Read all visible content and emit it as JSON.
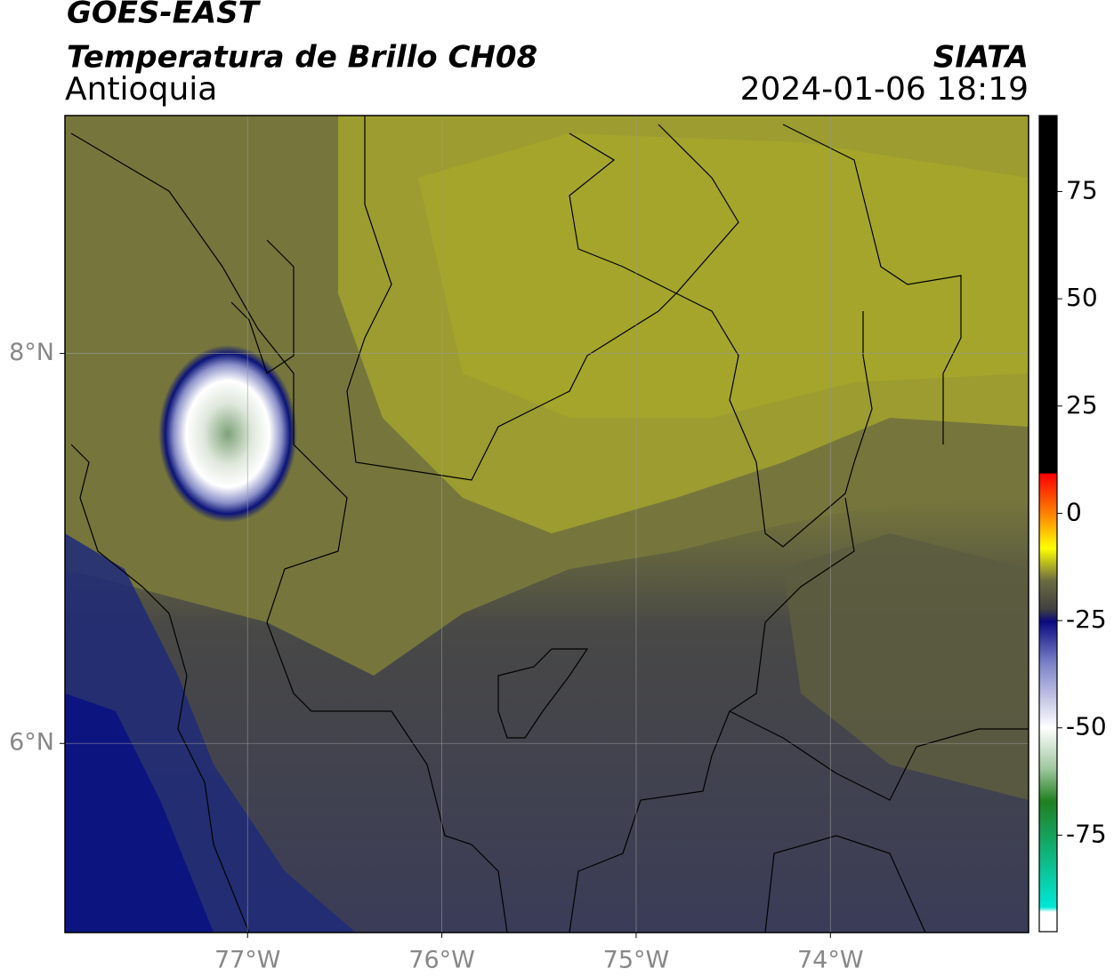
{
  "header": {
    "title": "GOES-EAST",
    "subtitle": "Temperatura de Brillo CH08",
    "region": "Antioquia",
    "source": "SIATA",
    "datetime": "2024-01-06 18:19"
  },
  "map": {
    "xlim": [
      -77.94,
      -72.98
    ],
    "ylim": [
      5.03,
      9.22
    ],
    "xticks": [
      {
        "value": -77,
        "label": "77°W"
      },
      {
        "value": -76,
        "label": "76°W"
      },
      {
        "value": -75,
        "label": "75°W"
      },
      {
        "value": -74,
        "label": "74°W"
      }
    ],
    "yticks": [
      {
        "value": 6,
        "label": "6°N"
      },
      {
        "value": 8,
        "label": "8°N"
      }
    ],
    "grid": true
  },
  "colorbar": {
    "lim": [
      -97.5,
      92.7
    ],
    "ticks": [
      -75,
      -50,
      -25,
      0,
      25,
      50,
      75
    ]
  }
}
